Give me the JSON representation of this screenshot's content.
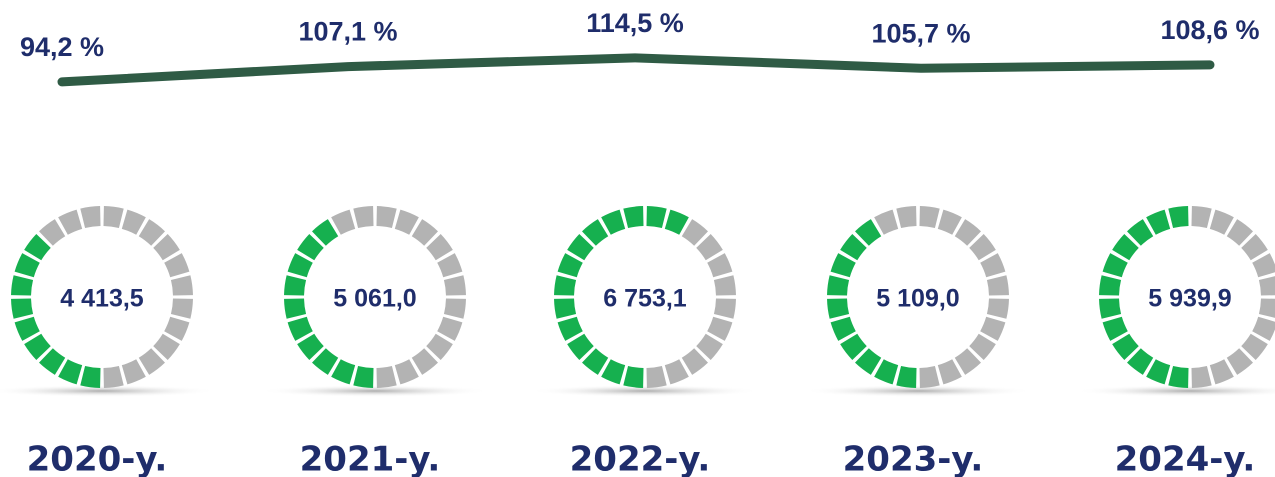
{
  "chart_data": [
    {
      "type": "line",
      "categories": [
        "2020-y.",
        "2021-y.",
        "2022-y.",
        "2023-y.",
        "2024-y."
      ],
      "series": [
        {
          "color": "#2f5b45",
          "values": [
            94.2,
            107.1,
            114.5,
            105.7,
            108.6
          ],
          "value_labels": [
            "94,2 %",
            "107,1 %",
            "114,5 %",
            "105,7 %",
            "108,6 %"
          ]
        }
      ],
      "ylim": [
        40,
        160
      ]
    },
    {
      "type": "gauge",
      "categories": [
        "2020-y.",
        "2021-y.",
        "2022-y.",
        "2023-y.",
        "2024-y."
      ],
      "values": [
        4413.5,
        5061.0,
        6753.1,
        5109.0,
        5939.9
      ],
      "value_labels": [
        "4 413,5",
        "5 061,0",
        "6 753,1",
        "5 109,0",
        "5 939,9"
      ],
      "color": "#16b04f",
      "ylim": [
        0,
        12000
      ]
    }
  ]
}
